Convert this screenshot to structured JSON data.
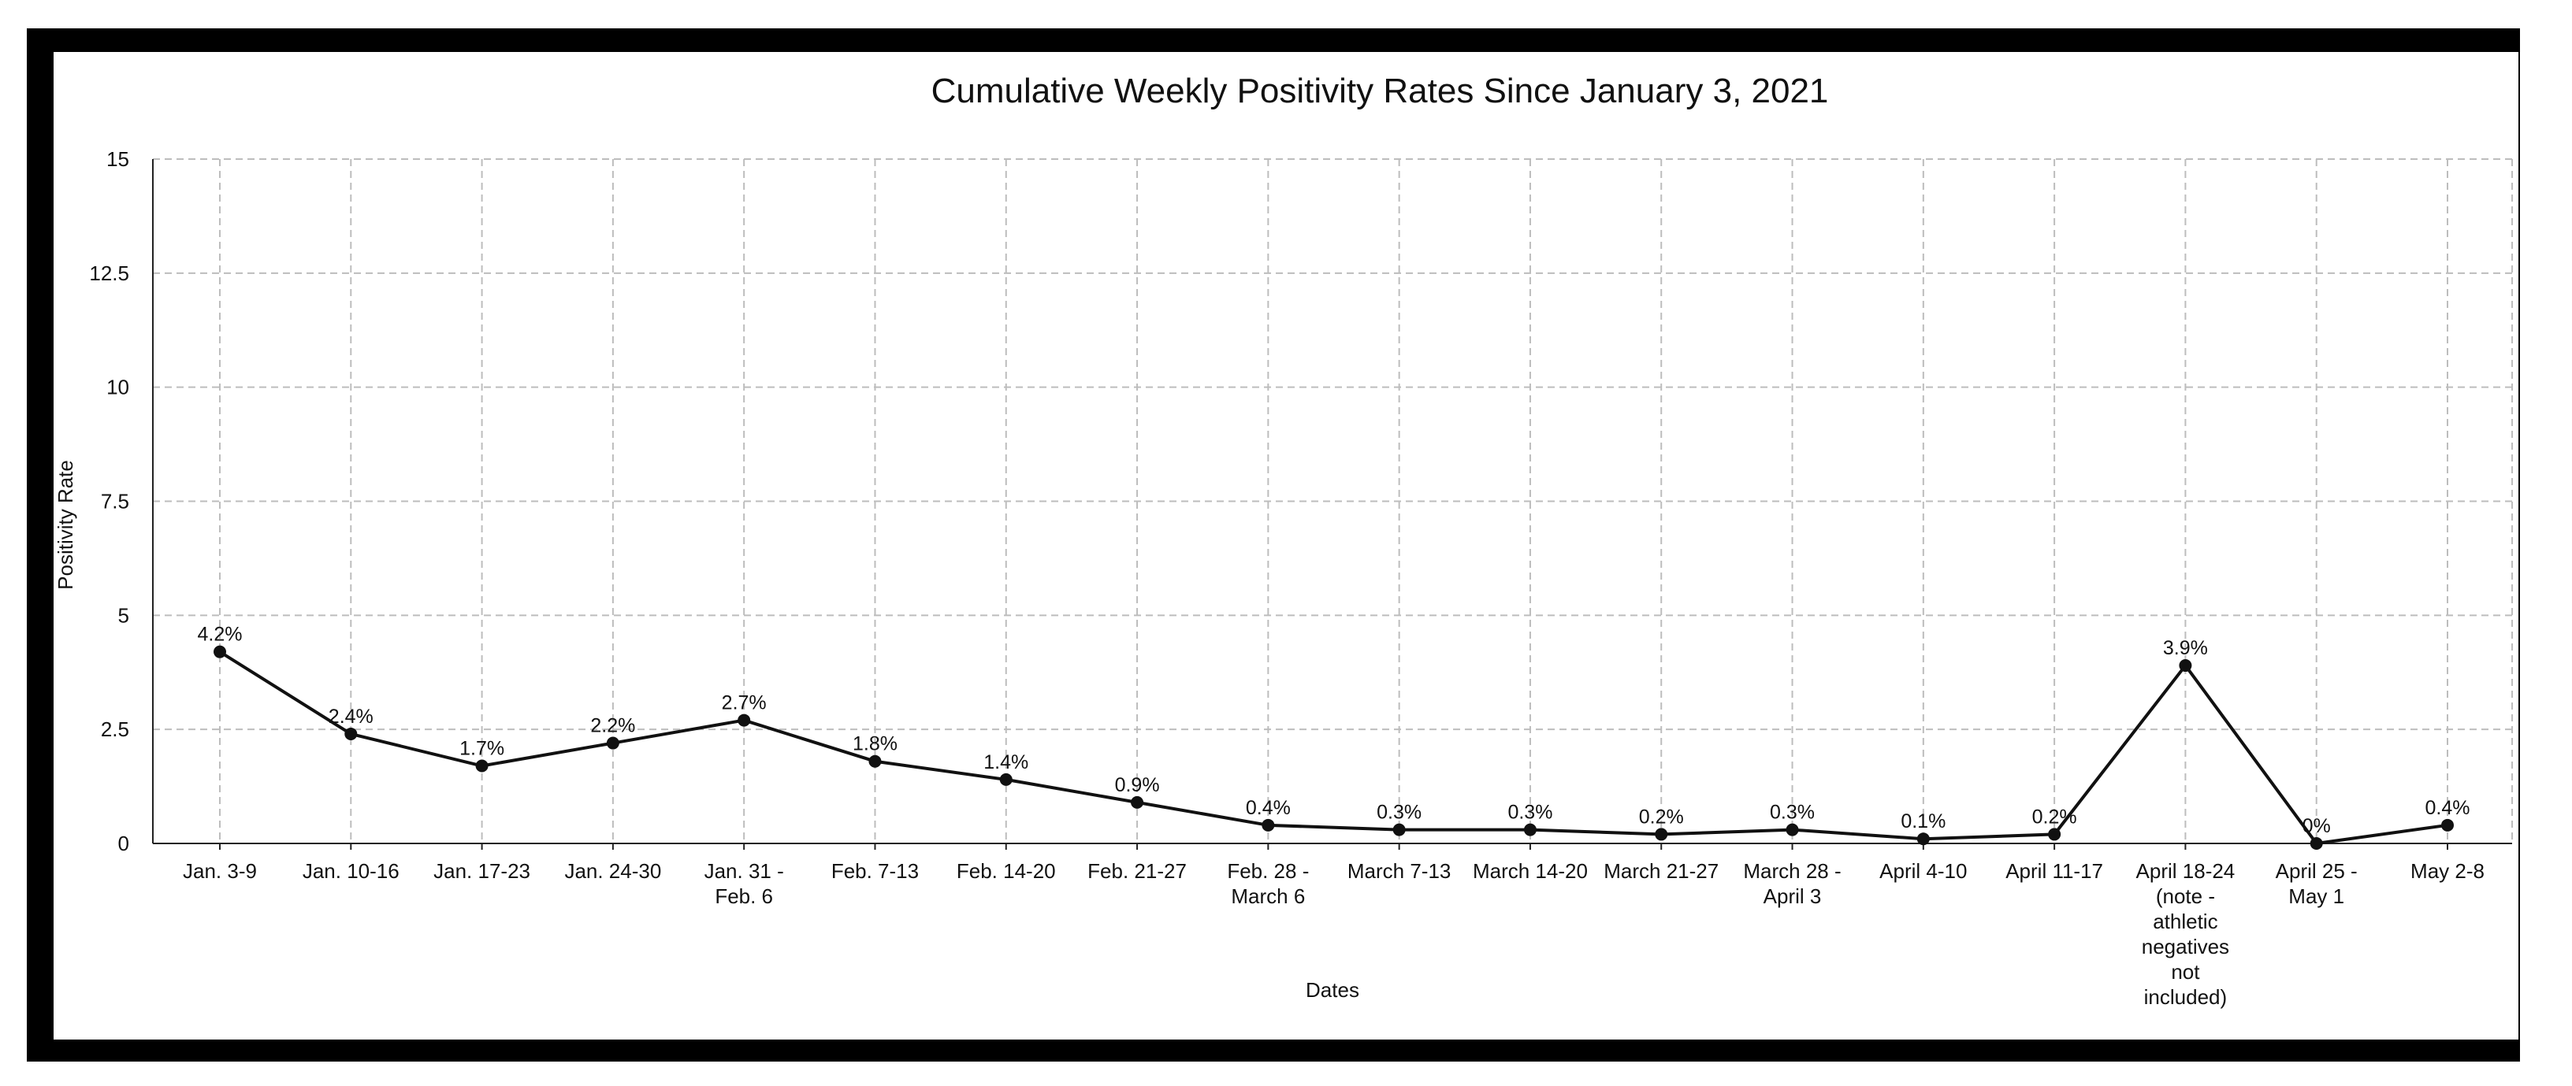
{
  "chart_data": {
    "type": "line",
    "title": "Cumulative Weekly Positivity Rates Since January 3, 2021",
    "xlabel": "Dates",
    "ylabel": "Positivity Rate",
    "ylim": [
      0,
      15
    ],
    "yticks": [
      0,
      2.5,
      5,
      7.5,
      10,
      12.5,
      15
    ],
    "ytick_labels": [
      "0",
      "2.5",
      "5",
      "7.5",
      "10",
      "12.5",
      "15"
    ],
    "grid": true,
    "categories": [
      [
        "Jan. 3-9"
      ],
      [
        "Jan. 10-16"
      ],
      [
        "Jan. 17-23"
      ],
      [
        "Jan. 24-30"
      ],
      [
        "Jan. 31 -",
        "Feb. 6"
      ],
      [
        "Feb. 7-13"
      ],
      [
        "Feb. 14-20"
      ],
      [
        "Feb. 21-27"
      ],
      [
        "Feb. 28 -",
        "March 6"
      ],
      [
        "March 7-13"
      ],
      [
        "March 14-20"
      ],
      [
        "March 21-27"
      ],
      [
        "March 28 -",
        "April 3"
      ],
      [
        "April 4-10"
      ],
      [
        "April 11-17"
      ],
      [
        "April 18-24",
        "(note -",
        "athletic",
        "negatives",
        "not",
        "included)"
      ],
      [
        "April 25 -",
        "May 1"
      ],
      [
        "May 2-8"
      ]
    ],
    "series": [
      {
        "values": [
          4.2,
          2.4,
          1.7,
          2.2,
          2.7,
          1.8,
          1.4,
          0.9,
          0.4,
          0.3,
          0.3,
          0.2,
          0.3,
          0.1,
          0.2,
          3.9,
          0,
          0.4
        ],
        "labels": [
          "4.2%",
          "2.4%",
          "1.7%",
          "2.2%",
          "2.7%",
          "1.8%",
          "1.4%",
          "0.9%",
          "0.4%",
          "0.3%",
          "0.3%",
          "0.2%",
          "0.3%",
          "0.1%",
          "0.2%",
          "3.9%",
          "0%",
          "0.4%"
        ]
      }
    ],
    "colors": {
      "line": "#111111",
      "grid": "#bdbdbd",
      "frame": "#000000"
    }
  }
}
